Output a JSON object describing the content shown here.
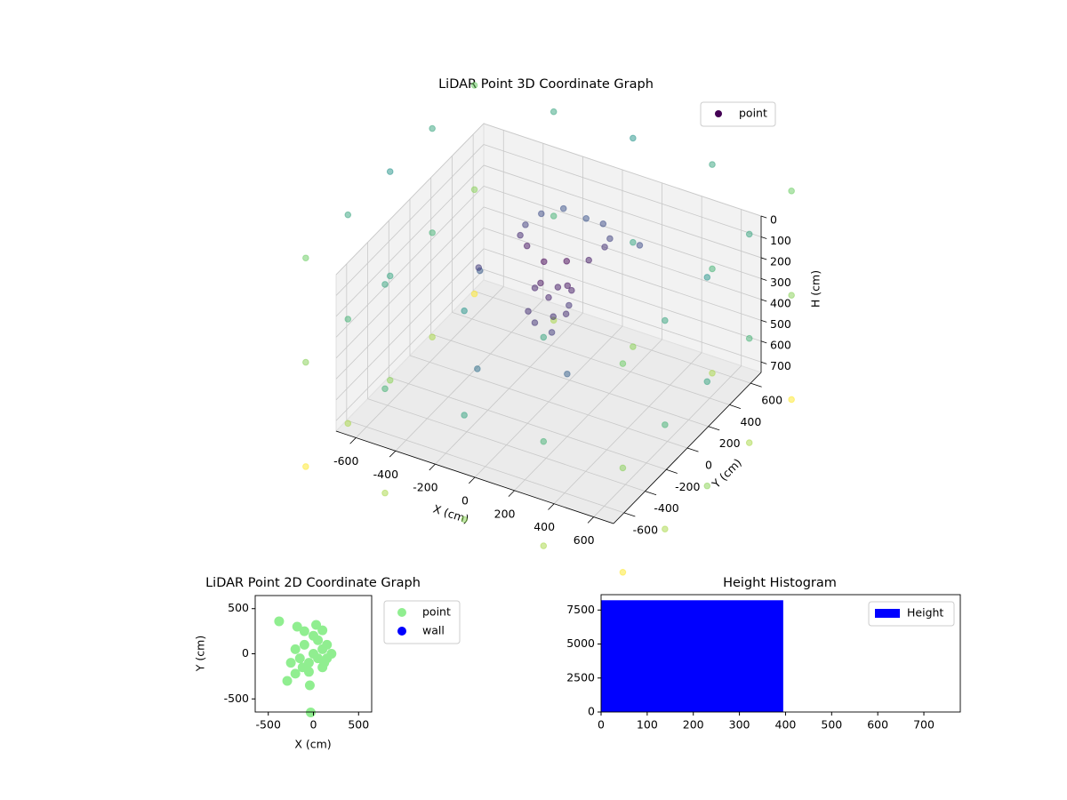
{
  "chart_data": [
    {
      "type": "scatter3d",
      "title": "LiDAR Point 3D Coordinate Graph",
      "xlabel": "X (cm)",
      "ylabel": "Y (cm)",
      "zlabel": "H (cm)",
      "xlim": [
        -700,
        700
      ],
      "ylim": [
        -700,
        700
      ],
      "zlim": [
        750,
        0
      ],
      "xticks": [
        -600,
        -400,
        -200,
        0,
        200,
        400,
        600
      ],
      "yticks": [
        -600,
        -400,
        -200,
        0,
        200,
        400,
        600
      ],
      "zticks": [
        0,
        100,
        200,
        300,
        400,
        500,
        600,
        700
      ],
      "grid": true,
      "colormap": "viridis",
      "alpha": 0.5,
      "legend": "upper right",
      "series": [
        {
          "name": "point",
          "color": "#440154",
          "x": [
            -800,
            -400,
            0,
            400,
            800,
            800,
            800,
            800,
            800,
            400,
            0,
            -400,
            -800,
            -800,
            -800,
            -800,
            -800,
            -400,
            0,
            400,
            800,
            800,
            800,
            800,
            800,
            400,
            0,
            -400,
            -800,
            -800,
            -800,
            -800,
            -800,
            -400,
            0,
            400,
            800,
            800,
            800,
            800,
            800,
            400,
            0,
            -400,
            -800,
            -800,
            -800,
            -800,
            0,
            50,
            100,
            -50,
            80,
            20,
            -30,
            120,
            60,
            -80,
            10,
            90,
            150,
            123,
            50,
            -50,
            -150,
            -223,
            -250,
            -223,
            -150,
            -50,
            50,
            123,
            -400,
            200,
            -300,
            300,
            -200
          ],
          "y": [
            800,
            800,
            800,
            800,
            800,
            400,
            0,
            -400,
            -800,
            -800,
            -800,
            -800,
            -800,
            -400,
            0,
            400,
            800,
            800,
            800,
            800,
            800,
            400,
            0,
            -400,
            -800,
            -800,
            -800,
            -800,
            -800,
            -400,
            0,
            400,
            800,
            800,
            800,
            800,
            800,
            400,
            0,
            -400,
            -800,
            -800,
            -800,
            -800,
            -800,
            -400,
            0,
            400,
            0,
            -50,
            30,
            -100,
            -120,
            50,
            -20,
            -60,
            80,
            20,
            -150,
            10,
            250,
            350,
            423,
            450,
            423,
            350,
            250,
            150,
            77,
            50,
            77,
            150,
            100,
            -200,
            -100,
            300,
            -300
          ],
          "h": [
            -100,
            -100,
            -100,
            -100,
            -100,
            -100,
            -100,
            -100,
            -100,
            -100,
            -100,
            -100,
            -100,
            -100,
            -100,
            -100,
            400,
            400,
            400,
            400,
            400,
            400,
            400,
            400,
            400,
            400,
            400,
            400,
            400,
            400,
            400,
            400,
            900,
            900,
            900,
            900,
            900,
            900,
            900,
            900,
            900,
            900,
            900,
            900,
            900,
            900,
            900,
            900,
            250,
            300,
            200,
            280,
            330,
            220,
            180,
            260,
            310,
            240,
            290,
            170,
            90,
            110,
            100,
            120,
            90,
            100,
            110,
            100,
            90,
            120,
            100,
            110,
            300,
            450,
            150,
            60,
            500
          ]
        }
      ]
    },
    {
      "type": "scatter",
      "title": "LiDAR Point 2D Coordinate Graph",
      "xlabel": "X (cm)",
      "ylabel": "Y (cm)",
      "xlim": [
        -645,
        645
      ],
      "ylim": [
        -645,
        645
      ],
      "xticks": [
        -500,
        0,
        500
      ],
      "yticks": [
        -500,
        0,
        500
      ],
      "legend": "outside right",
      "series": [
        {
          "name": "point",
          "color": "#90ee90",
          "x": [
            -380,
            -290,
            -30,
            -40,
            100,
            -200,
            -180,
            0,
            100,
            -100,
            150,
            -150,
            50,
            -50,
            0,
            100,
            -200,
            50,
            -100,
            150,
            -50,
            200,
            -250,
            120,
            -120,
            30
          ],
          "y": [
            360,
            -300,
            -650,
            -350,
            260,
            -220,
            300,
            0,
            50,
            100,
            -50,
            -50,
            150,
            -100,
            200,
            -150,
            50,
            -50,
            250,
            100,
            -200,
            0,
            -100,
            -100,
            -150,
            320
          ]
        },
        {
          "name": "wall",
          "color": "#0000ff",
          "x": [],
          "y": []
        }
      ]
    },
    {
      "type": "histogram",
      "title": "Height Histogram",
      "xlim": [
        0,
        779
      ],
      "ylim": [
        0,
        8631
      ],
      "xticks": [
        0,
        100,
        200,
        300,
        400,
        500,
        600,
        700
      ],
      "yticks": [
        0,
        2500,
        5000,
        7500
      ],
      "bins": [
        0,
        395
      ],
      "legend": "upper right",
      "series": [
        {
          "name": "Height",
          "color": "#0000ff",
          "values": [
            8220
          ]
        }
      ]
    }
  ]
}
